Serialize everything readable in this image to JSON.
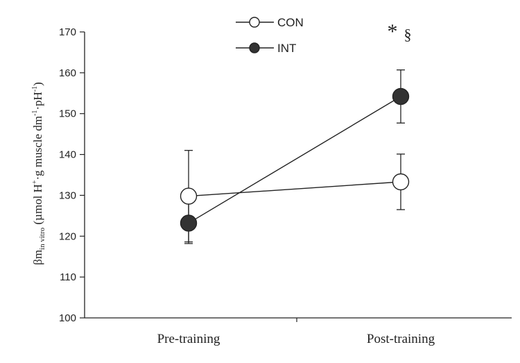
{
  "chart_data": {
    "type": "line",
    "categories": [
      "Pre-training",
      "Post-training"
    ],
    "series": [
      {
        "name": "CON",
        "values": [
          129.8,
          133.3
        ],
        "error": [
          11.2,
          6.8
        ],
        "marker": "open-circle",
        "color": "#222222",
        "fill": "#ffffff"
      },
      {
        "name": "INT",
        "values": [
          123.2,
          154.2
        ],
        "error": [
          5.0,
          6.5
        ],
        "marker": "filled-circle",
        "color": "#222222",
        "fill": "#333333"
      }
    ],
    "ylim": [
      100,
      170
    ],
    "yticks": [
      100,
      110,
      120,
      130,
      140,
      150,
      160,
      170
    ],
    "ylabel": {
      "prefix": "βm",
      "subscript": "in vitro",
      "main": " (µmol H",
      "sup1": "+",
      "mid": "·g muscle dm",
      "sup2": "-1",
      "mid2": "·pH",
      "sup3": "-1",
      "end": ")"
    },
    "xlabel": "",
    "legend": {
      "placement": "top-center"
    },
    "annotations": [
      {
        "text": "*",
        "category": "Post-training",
        "series": "INT"
      },
      {
        "text": "§",
        "category": "Post-training",
        "series": "INT"
      }
    ],
    "grid": false
  }
}
